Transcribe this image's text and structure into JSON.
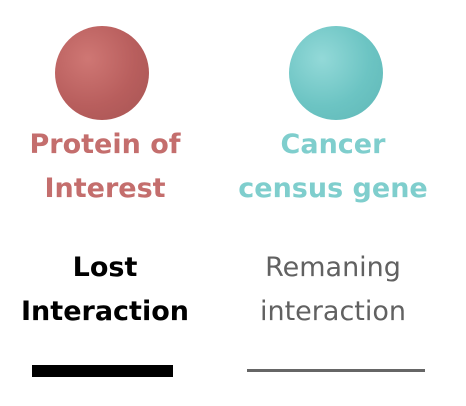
{
  "nodes": {
    "protein": {
      "line1": "Protein of",
      "line2": "Interest",
      "color": "#c46e6d"
    },
    "cancer": {
      "line1": "Cancer",
      "line2": "census gene",
      "color": "#7fcecd"
    }
  },
  "edges": {
    "lost": {
      "line1": "Lost",
      "line2": "Interaction",
      "color": "#000000"
    },
    "remaining": {
      "line1": "Remaning",
      "line2": "interaction",
      "color": "#666666"
    }
  }
}
